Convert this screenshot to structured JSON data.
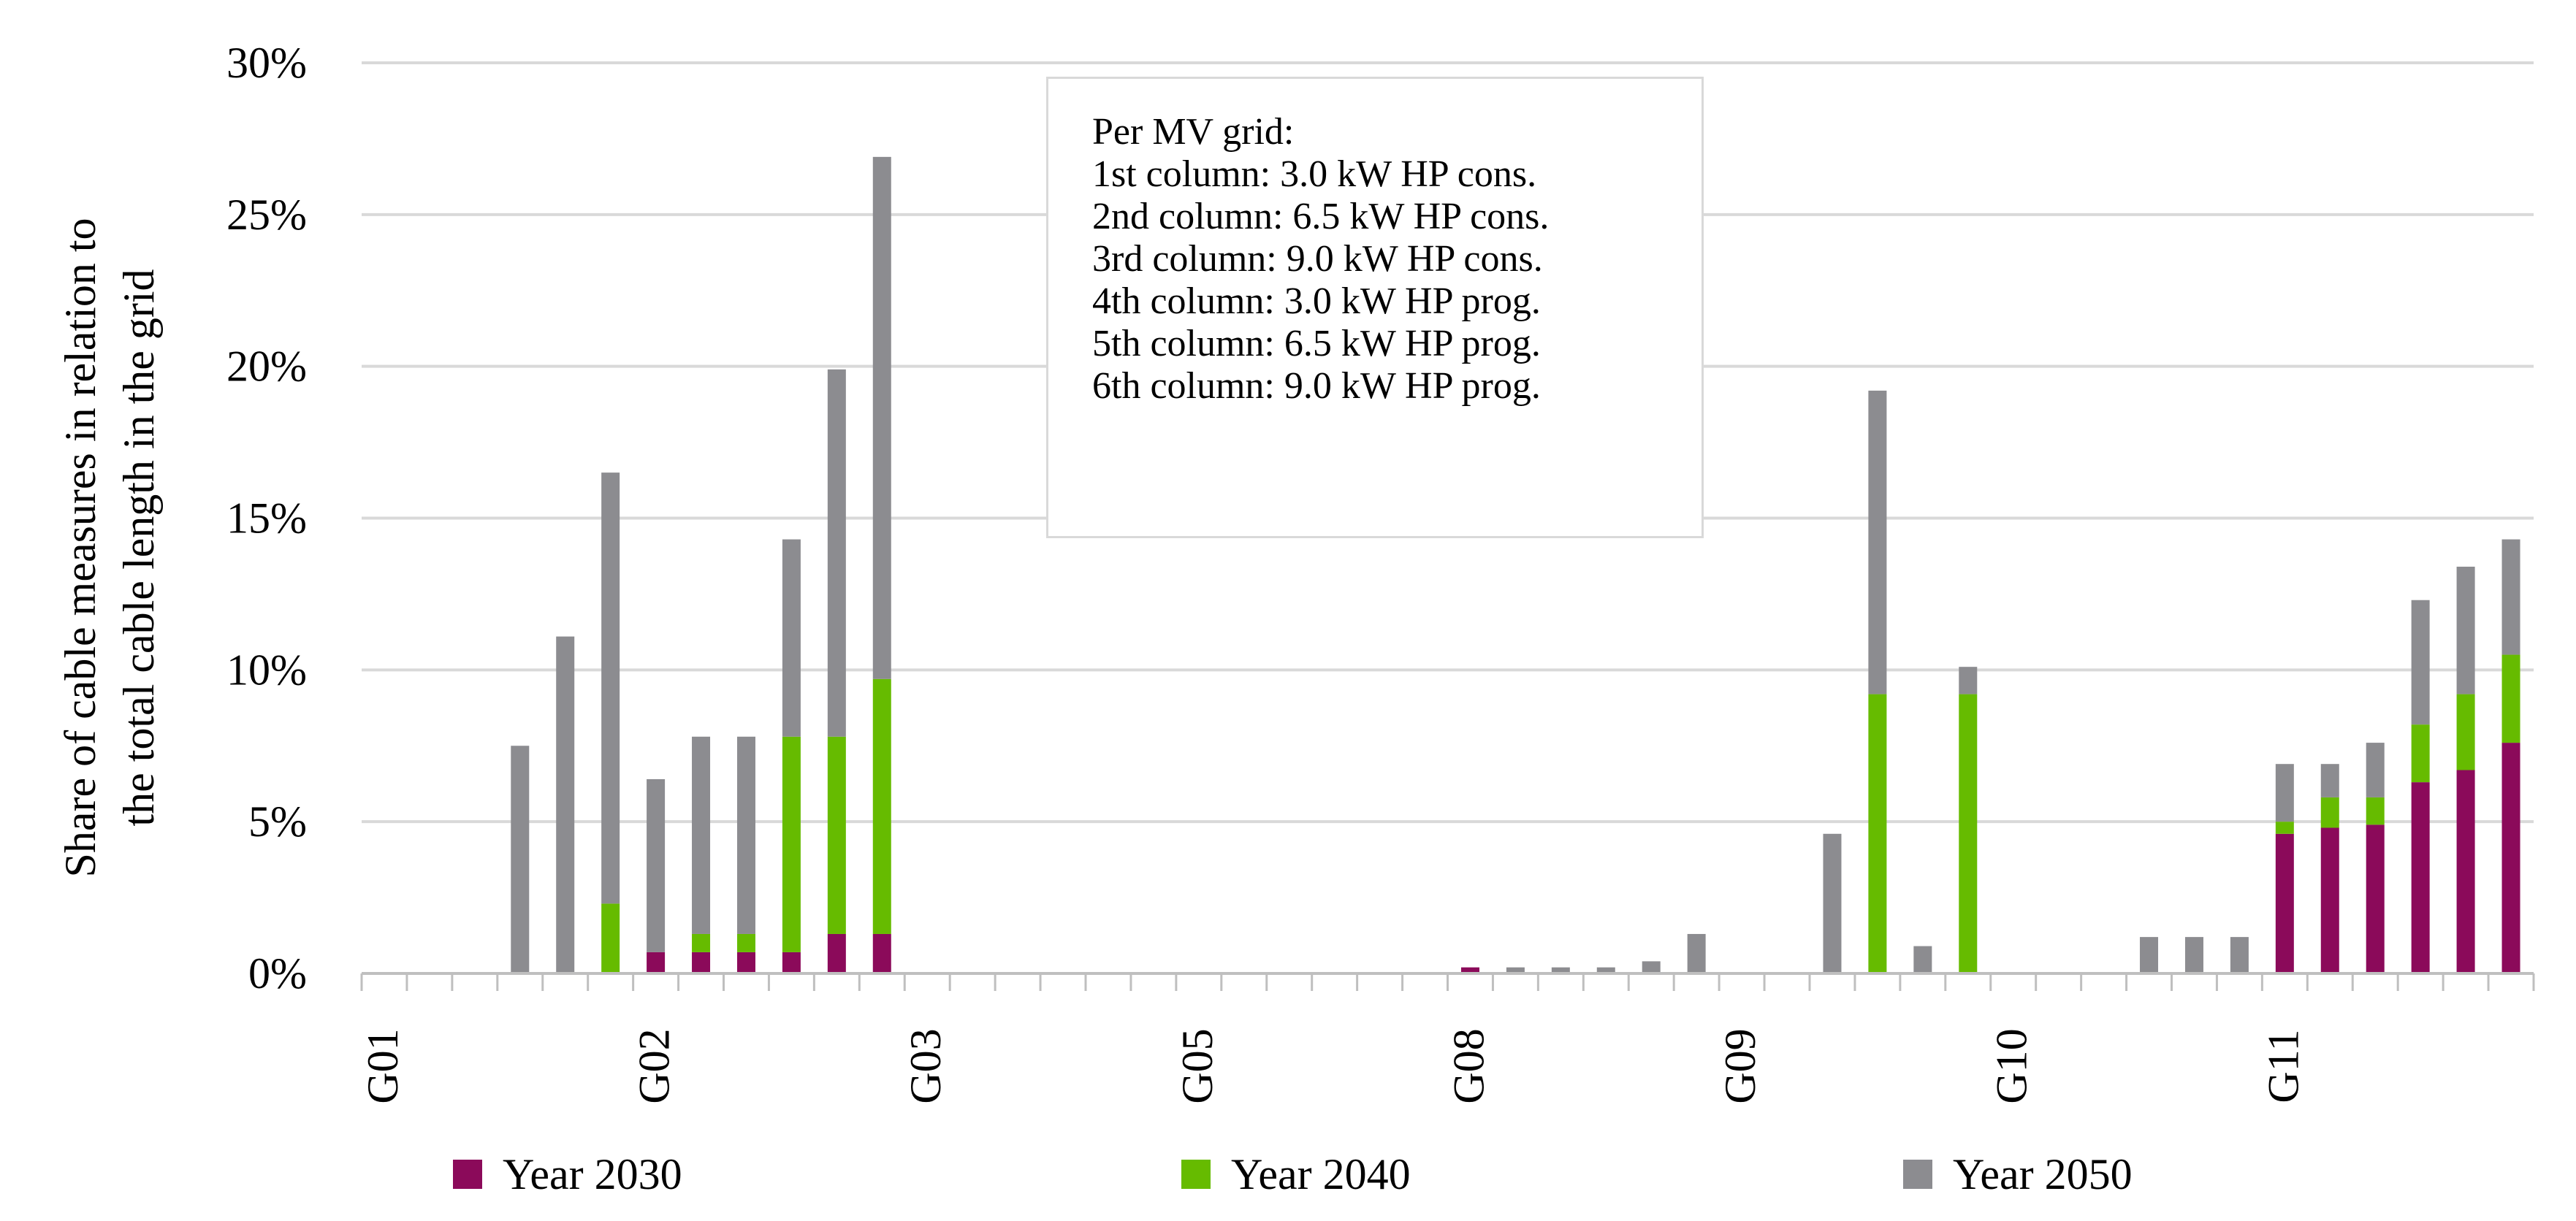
{
  "chart_data": {
    "type": "bar",
    "stacked": true,
    "ylabel": [
      "Share of cable measures in relation to",
      "the total cable length in the grid"
    ],
    "ylim": [
      0,
      30
    ],
    "yticks": [
      0,
      5,
      10,
      15,
      20,
      25,
      30
    ],
    "ytick_labels": [
      "0%",
      "5%",
      "10%",
      "15%",
      "20%",
      "25%",
      "30%"
    ],
    "grid": true,
    "groups": [
      "G01",
      "G02",
      "G03",
      "G05",
      "G08",
      "G09",
      "G10",
      "G11"
    ],
    "columns_per_group": 6,
    "series": [
      {
        "name": "Year 2030",
        "color": "#8b0a5a",
        "values": [
          0,
          0,
          0,
          0,
          0,
          0,
          0.7,
          0.7,
          0.7,
          0.7,
          1.3,
          1.3,
          0,
          0,
          0,
          0,
          0,
          0,
          0,
          0,
          0,
          0,
          0,
          0,
          0.2,
          0,
          0,
          0,
          0,
          0,
          0,
          0,
          0,
          0,
          0,
          0,
          0,
          0,
          0,
          0,
          0,
          0,
          4.6,
          4.8,
          4.9,
          6.3,
          6.7,
          7.6
        ]
      },
      {
        "name": "Year 2040",
        "color": "#66bb00",
        "values": [
          0,
          0,
          0,
          0,
          0,
          2.3,
          0,
          0.6,
          0.6,
          7.1,
          6.5,
          8.4,
          0,
          0,
          0,
          0,
          0,
          0,
          0,
          0,
          0,
          0,
          0,
          0,
          0,
          0,
          0,
          0,
          0,
          0,
          0,
          0,
          0,
          9.2,
          0,
          9.2,
          0,
          0,
          0,
          0,
          0,
          0,
          0.4,
          1.0,
          0.9,
          1.9,
          2.5,
          2.9
        ]
      },
      {
        "name": "Year 2050",
        "color": "#8c8c90",
        "values": [
          0,
          0,
          0,
          7.5,
          11.1,
          14.2,
          5.7,
          6.5,
          6.5,
          6.5,
          12.1,
          17.2,
          0,
          0,
          0,
          0,
          0,
          0,
          0,
          0,
          0,
          0,
          0,
          0,
          0,
          0.2,
          0.2,
          0.2,
          0.4,
          1.3,
          0,
          0,
          4.6,
          10.0,
          0.9,
          0.9,
          0,
          0,
          0,
          1.2,
          1.2,
          1.2,
          1.9,
          1.1,
          1.8,
          4.1,
          4.2,
          3.8
        ]
      }
    ],
    "annotation": {
      "title": "Per MV grid:",
      "lines": [
        "1st column: 3.0 kW HP cons.",
        "2nd column: 6.5 kW HP cons.",
        "3rd column: 9.0 kW HP cons.",
        "4th column: 3.0 kW HP prog.",
        "5th column: 6.5 kW HP prog.",
        "6th column: 9.0 kW HP prog."
      ]
    },
    "legend_position": "bottom"
  }
}
